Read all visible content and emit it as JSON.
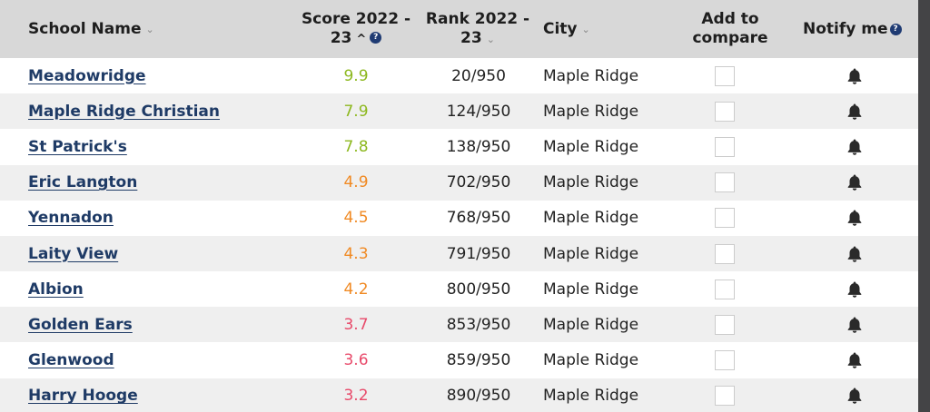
{
  "columns": {
    "school_name": "School Name",
    "score_line1": "Score 2022 -",
    "score_line2": "23",
    "rank_line1": "Rank 2022 -",
    "rank_line2": "23",
    "city": "City",
    "compare_line1": "Add to",
    "compare_line2": "compare",
    "notify": "Notify me",
    "info_symbol": "?"
  },
  "colors": {
    "score_high": "#8db81f",
    "score_mid": "#f08a24",
    "score_low": "#e84a6a"
  },
  "rows": [
    {
      "name": "Meadowridge",
      "score": "9.9",
      "score_level": "high",
      "rank": "20/950",
      "city": "Maple Ridge"
    },
    {
      "name": "Maple Ridge Christian",
      "score": "7.9",
      "score_level": "high",
      "rank": "124/950",
      "city": "Maple Ridge"
    },
    {
      "name": "St Patrick's",
      "score": "7.8",
      "score_level": "high",
      "rank": "138/950",
      "city": "Maple Ridge"
    },
    {
      "name": "Eric Langton",
      "score": "4.9",
      "score_level": "mid",
      "rank": "702/950",
      "city": "Maple Ridge"
    },
    {
      "name": "Yennadon",
      "score": "4.5",
      "score_level": "mid",
      "rank": "768/950",
      "city": "Maple Ridge"
    },
    {
      "name": "Laity View",
      "score": "4.3",
      "score_level": "mid",
      "rank": "791/950",
      "city": "Maple Ridge"
    },
    {
      "name": "Albion",
      "score": "4.2",
      "score_level": "mid",
      "rank": "800/950",
      "city": "Maple Ridge"
    },
    {
      "name": "Golden Ears",
      "score": "3.7",
      "score_level": "low",
      "rank": "853/950",
      "city": "Maple Ridge"
    },
    {
      "name": "Glenwood",
      "score": "3.6",
      "score_level": "low",
      "rank": "859/950",
      "city": "Maple Ridge"
    },
    {
      "name": "Harry Hooge",
      "score": "3.2",
      "score_level": "low",
      "rank": "890/950",
      "city": "Maple Ridge"
    }
  ]
}
